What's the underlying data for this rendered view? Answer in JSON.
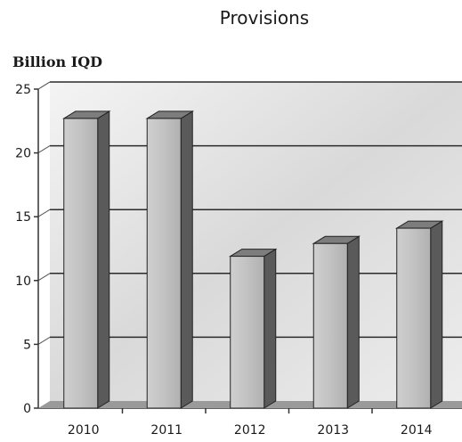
{
  "chart_data": {
    "type": "bar",
    "title": "Provisions",
    "xlabel": "",
    "ylabel": "Billion IQD",
    "categories": [
      "2010",
      "2011",
      "2012",
      "2013",
      "2014"
    ],
    "values": [
      22.7,
      22.7,
      11.9,
      12.9,
      14.1
    ],
    "ylim": [
      0,
      25
    ],
    "yticks": [
      0,
      5,
      10,
      15,
      20,
      25
    ],
    "grid": true,
    "style": "3d"
  }
}
